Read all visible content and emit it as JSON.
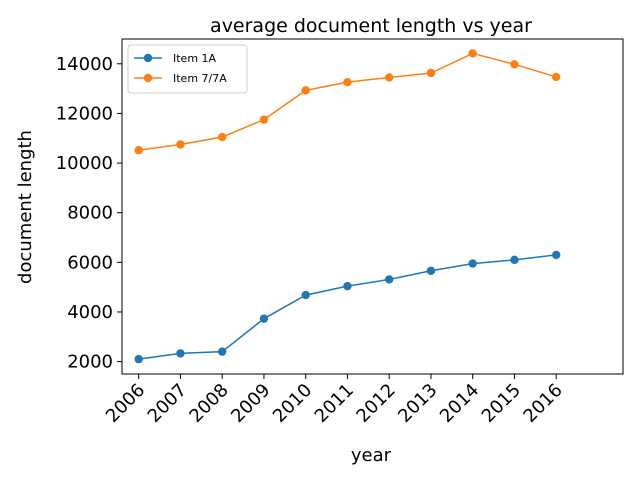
{
  "chart_data": {
    "type": "line",
    "title": "average document length vs year",
    "xlabel": "year",
    "ylabel": "document length",
    "categories": [
      "2006",
      "2007",
      "2008",
      "2009",
      "2010",
      "2011",
      "2012",
      "2013",
      "2014",
      "2015",
      "2016"
    ],
    "x_range": [
      2005.6,
      2017.6
    ],
    "ylim": [
      1500,
      15000
    ],
    "yticks": [
      2000,
      4000,
      6000,
      8000,
      10000,
      12000,
      14000
    ],
    "grid": false,
    "legend_position": "top-left",
    "series": [
      {
        "name": "Item 1A",
        "color": "#1f77b4",
        "marker": "circle",
        "values": [
          2100,
          2330,
          2400,
          3730,
          4680,
          5040,
          5310,
          5660,
          5950,
          6100,
          6300
        ]
      },
      {
        "name": "Item 7/7A",
        "color": "#ff7f0e",
        "marker": "circle",
        "values": [
          10520,
          10750,
          11050,
          11750,
          12930,
          13260,
          13450,
          13630,
          14420,
          13980,
          13470
        ]
      }
    ]
  }
}
